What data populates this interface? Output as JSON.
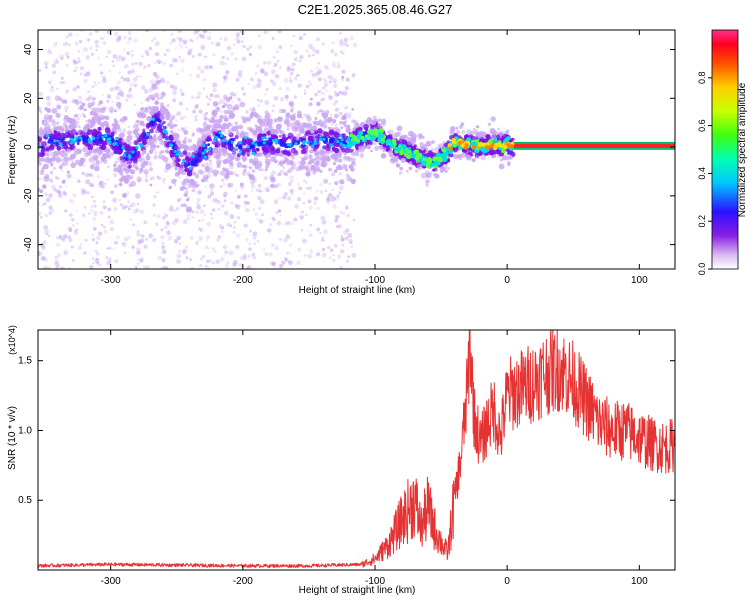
{
  "title": "C2E1.2025.365.08.46.G27",
  "colors": {
    "snr_line": "#e53333",
    "axis": "#000000",
    "spectrogram_low": "#c9a6f2",
    "spectrogram_mid": "#7a12e6",
    "spectrogram_high": "#1a1aff"
  },
  "chart_data": [
    {
      "type": "heatmap",
      "name": "spectrogram",
      "xlabel": "Height of straight line (km)",
      "ylabel": "Frequency (Hz)",
      "xlim": [
        -355,
        127
      ],
      "ylim": [
        -50,
        48
      ],
      "xticks": [
        -300,
        -200,
        -100,
        0,
        100
      ],
      "xtick_labels": [
        "-300",
        "-200",
        "-100",
        "0",
        "100"
      ],
      "yticks": [
        -40,
        -20,
        0,
        20,
        40
      ],
      "ytick_labels": [
        "-40",
        "-20",
        "0",
        "20",
        "40"
      ],
      "colorbar": {
        "label": "Normalized spectral amplitude",
        "range": [
          0,
          1
        ],
        "ticks": [
          0.0,
          0.2,
          0.4,
          0.6,
          0.8
        ],
        "tick_labels": [
          "0.0",
          "0.2",
          "0.4",
          "0.6",
          "0.8"
        ]
      },
      "ridge": {
        "description_points_x": [
          -350,
          -330,
          -300,
          -285,
          -265,
          -250,
          -240,
          -220,
          -200,
          -180,
          -160,
          -140,
          -120,
          -100,
          -85,
          -70,
          -60,
          -50,
          -45,
          -40,
          -30,
          -20,
          -10,
          0,
          10,
          127
        ],
        "description_points_y": [
          2,
          3,
          4,
          -5,
          12,
          -3,
          -8,
          4,
          0,
          2,
          1,
          3,
          2,
          6,
          0,
          -3,
          -6,
          -5,
          -2,
          2,
          1,
          0,
          1,
          1,
          0,
          0
        ]
      }
    },
    {
      "type": "line",
      "name": "snr",
      "ylabel": "SNR (10 * v/v)",
      "xlabel": "Height of straight line (km)",
      "y_scale_label": "(x10^4)",
      "xlim": [
        -355,
        127
      ],
      "ylim": [
        0,
        1.72
      ],
      "xticks": [
        -300,
        -200,
        -100,
        0,
        100
      ],
      "xtick_labels": [
        "-300",
        "-200",
        "-100",
        "0",
        "100"
      ],
      "yticks": [
        0.5,
        1.0,
        1.5
      ],
      "ytick_labels": [
        "0.5",
        "1.0",
        "1.5"
      ],
      "series": [
        {
          "name": "SNR",
          "x": [
            -355,
            -300,
            -250,
            -200,
            -150,
            -110,
            -100,
            -90,
            -80,
            -70,
            -65,
            -60,
            -55,
            -50,
            -45,
            -40,
            -35,
            -30,
            -28,
            -25,
            -20,
            -15,
            -10,
            -5,
            0,
            10,
            20,
            30,
            40,
            50,
            60,
            70,
            80,
            90,
            100,
            110,
            120,
            127
          ],
          "y": [
            0.03,
            0.04,
            0.035,
            0.03,
            0.03,
            0.04,
            0.08,
            0.18,
            0.35,
            0.5,
            0.3,
            0.45,
            0.3,
            0.2,
            0.12,
            0.5,
            0.8,
            1.3,
            1.65,
            1.1,
            0.9,
            1.05,
            1.15,
            0.95,
            1.25,
            1.3,
            1.35,
            1.42,
            1.45,
            1.35,
            1.2,
            1.05,
            1.0,
            1.0,
            0.95,
            0.9,
            0.88,
            0.9
          ]
        }
      ]
    }
  ]
}
